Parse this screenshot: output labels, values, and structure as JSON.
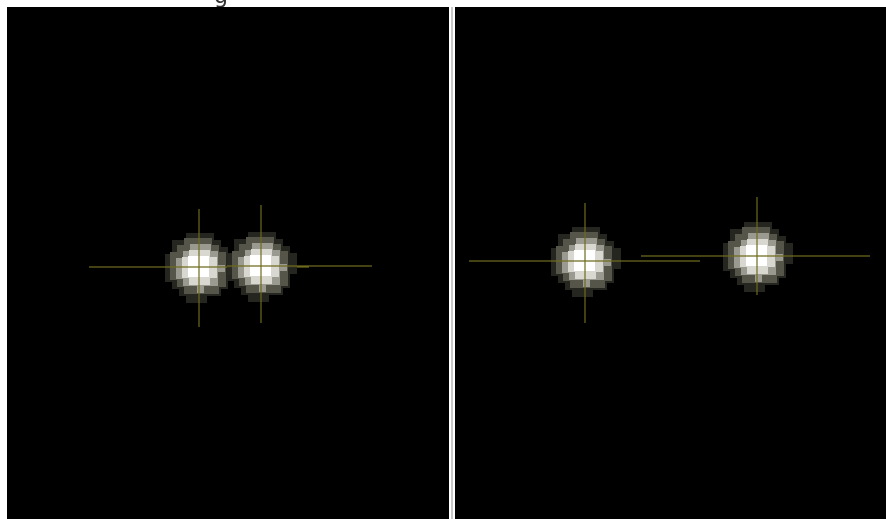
{
  "caption": {
    "partial_text": "g"
  },
  "colors": {
    "background": "#000000",
    "divider": "#c8c8c8",
    "crosshair": "#6e6a1c",
    "spot_core": "#ffffff",
    "spot_halo": "#5a5a50"
  },
  "panels": [
    {
      "id": "left",
      "spots": [
        {
          "label": "spot-1",
          "crosshair": true
        },
        {
          "label": "spot-2",
          "crosshair": true
        }
      ]
    },
    {
      "id": "right",
      "spots": [
        {
          "label": "spot-3",
          "crosshair": true
        },
        {
          "label": "spot-4",
          "crosshair": true
        }
      ]
    }
  ]
}
